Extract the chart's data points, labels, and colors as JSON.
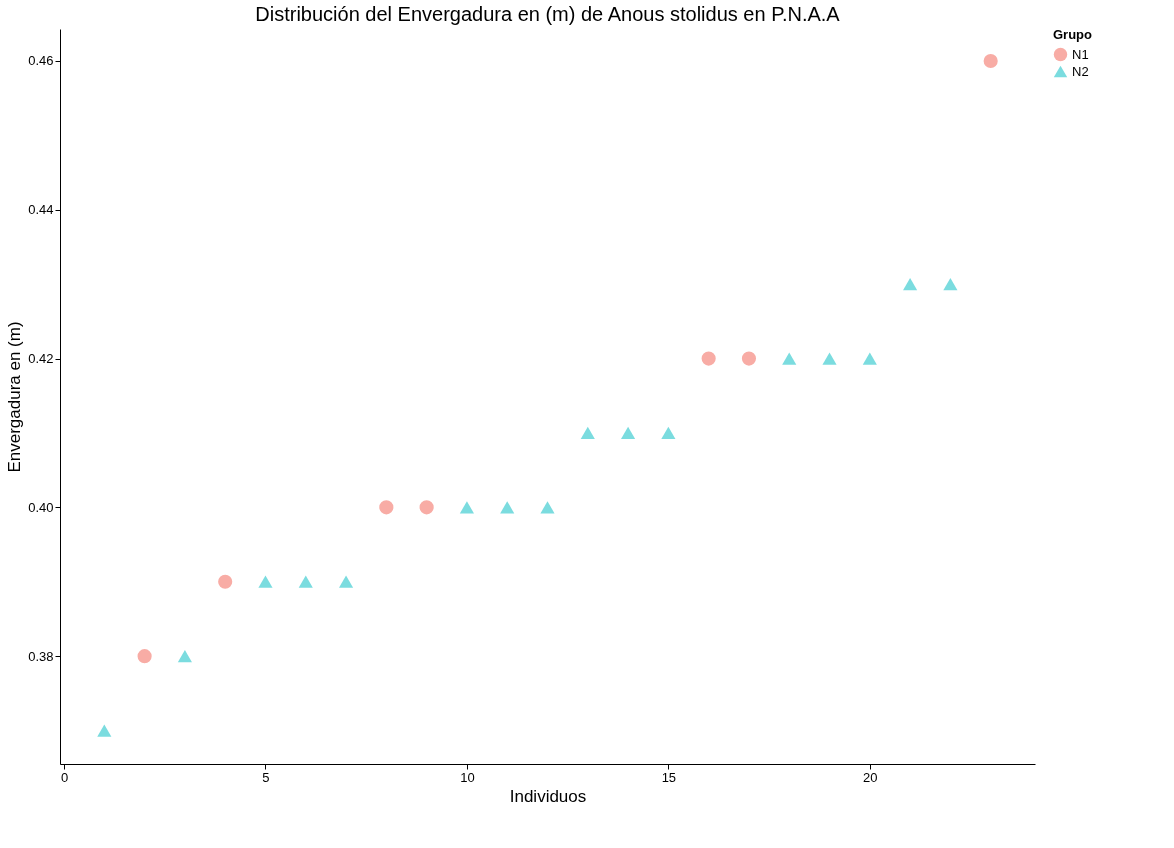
{
  "chart_data": {
    "type": "scatter",
    "title": "Distribución del  Envergadura en (m) de  Anous stolidus  en P.N.A.A",
    "xlabel": "Individuos",
    "ylabel": "Envergadura en (m)",
    "legend_title": "Grupo",
    "series": [
      {
        "name": "N1",
        "color": "#f8aca5",
        "marker": "circle",
        "x": [
          2,
          4,
          8,
          9,
          16,
          17,
          23
        ],
        "values": [
          0.38,
          0.39,
          0.4,
          0.4,
          0.42,
          0.42,
          0.46
        ]
      },
      {
        "name": "N2",
        "color": "#7bdcdf",
        "marker": "triangle",
        "x": [
          1,
          3,
          5,
          6,
          7,
          10,
          11,
          12,
          13,
          14,
          15,
          18,
          19,
          20,
          21,
          22
        ],
        "values": [
          0.37,
          0.38,
          0.39,
          0.39,
          0.39,
          0.4,
          0.4,
          0.4,
          0.41,
          0.41,
          0.41,
          0.42,
          0.42,
          0.42,
          0.43,
          0.43
        ]
      }
    ],
    "xlim": [
      -0.1,
      24.1
    ],
    "xticks": [
      0,
      5,
      10,
      15,
      20
    ],
    "ylim": [
      0.3655,
      0.4643
    ],
    "yticks": [
      {
        "value": 0.38,
        "label": "0.38"
      },
      {
        "value": 0.4,
        "label": "0.40"
      },
      {
        "value": 0.42,
        "label": "0.42"
      },
      {
        "value": 0.44,
        "label": "0.44"
      },
      {
        "value": 0.46,
        "label": "0.46"
      }
    ],
    "grid": false,
    "legend": "right"
  }
}
